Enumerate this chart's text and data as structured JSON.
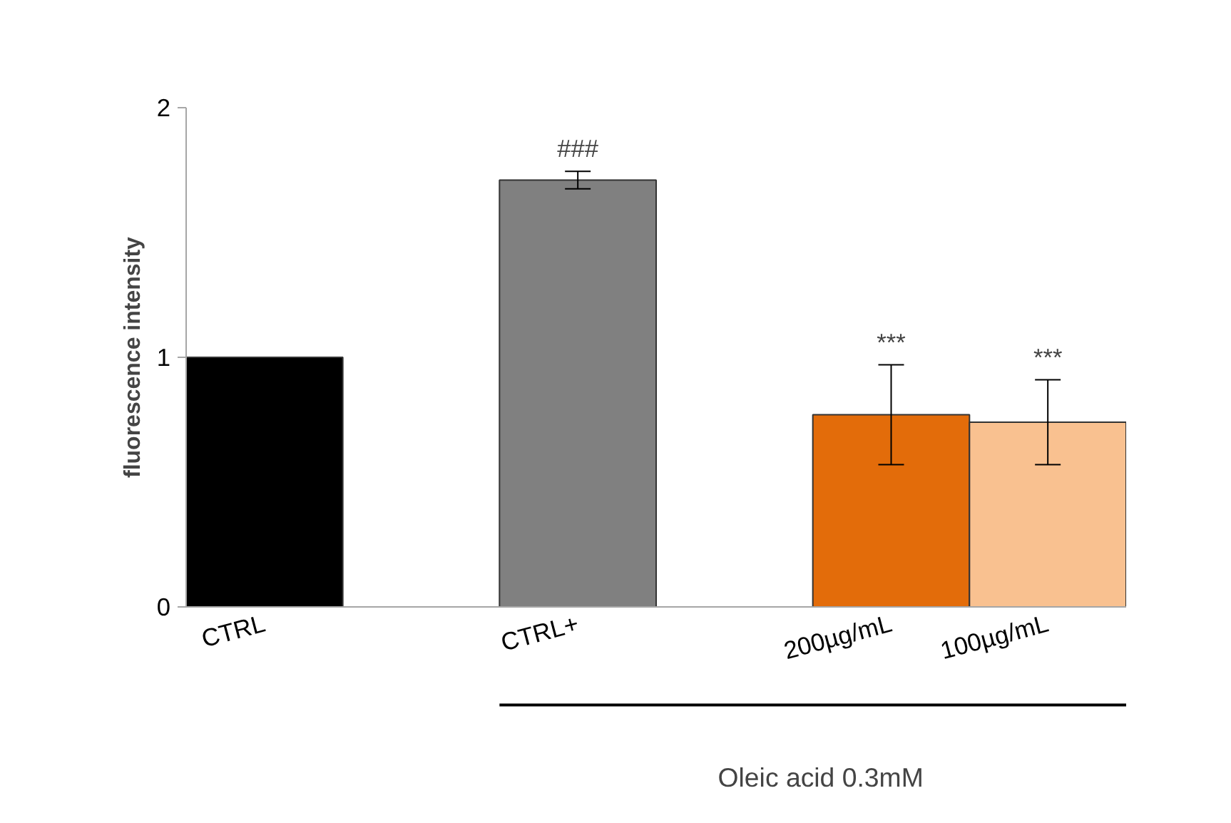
{
  "chart_data": {
    "type": "bar",
    "categories": [
      "CTRL",
      null,
      "CTRL+",
      null,
      "200µg/mL",
      "100µg/mL"
    ],
    "values": [
      1.0,
      null,
      1.71,
      null,
      0.77,
      0.74
    ],
    "errors": [
      null,
      null,
      0.035,
      null,
      0.2,
      0.17
    ],
    "colors": [
      "#000000",
      null,
      "#808080",
      null,
      "#e36c0a",
      "#f9c190"
    ],
    "ylim": [
      0,
      2
    ],
    "yticks": [
      0,
      1,
      2
    ],
    "ylabel": "fluorescence intensity",
    "grid": false,
    "annotations": [
      "###",
      "***",
      "***",
      "Oleic acid 0.3mM"
    ]
  }
}
